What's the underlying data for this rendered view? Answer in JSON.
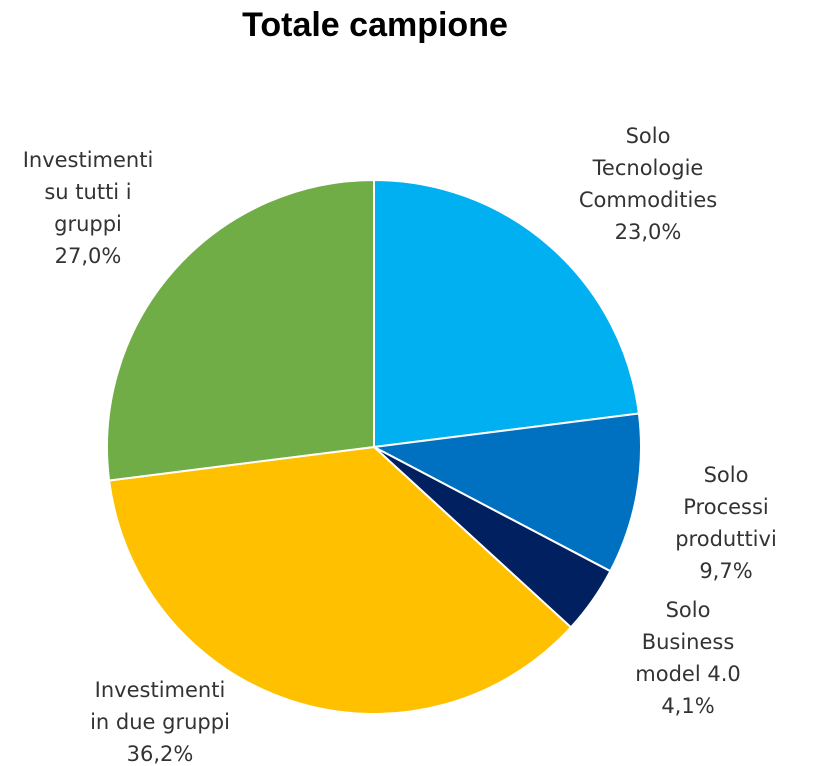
{
  "chart_data": {
    "type": "pie",
    "title": "Totale campione",
    "categories": [
      "Solo\nTecnologie\nCommodities",
      "Solo Processi\nproduttivi",
      "Solo Business\nmodel 4.0",
      "Investimenti\nin due gruppi",
      "Investimenti\nsu tutti i\ngruppi"
    ],
    "values": [
      23.0,
      9.7,
      4.1,
      36.2,
      27.0
    ],
    "value_labels": [
      "23,0%",
      "9,7%",
      "4,1%",
      "36,2%",
      "27,0%"
    ],
    "colors": [
      "#00b0f0",
      "#0070c0",
      "#002060",
      "#ffc000",
      "#70ad47"
    ]
  }
}
